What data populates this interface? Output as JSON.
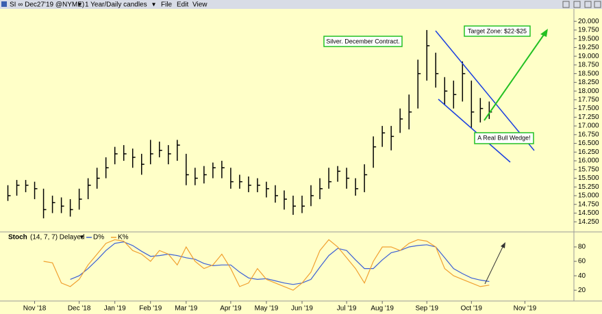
{
  "header": {
    "symbol": "SI ∞ Dec27'19 @NYME)",
    "period": "1 Year/Daily candles",
    "menus": [
      "File",
      "Edit",
      "View"
    ]
  },
  "chart_data": [
    {
      "type": "hlc",
      "annotations": [
        "Silver. December Contract.",
        "Target Zone: $22-$25",
        "A Real Bull Wedge!"
      ],
      "categories": [
        null,
        null,
        null,
        "Nov '18",
        null,
        null,
        null,
        null,
        "Dec '18",
        null,
        null,
        null,
        "Jan '19",
        null,
        null,
        null,
        "Feb '19",
        null,
        null,
        null,
        "Mar '19",
        null,
        null,
        null,
        null,
        "Apr '19",
        null,
        null,
        null,
        "May '19",
        null,
        null,
        null,
        "Jun '19",
        null,
        null,
        null,
        null,
        "Jul '19",
        null,
        null,
        null,
        "Aug '19",
        null,
        null,
        null,
        null,
        "Sep '19",
        null,
        null,
        null,
        null,
        "Oct '19",
        null,
        null,
        null,
        null,
        null,
        "Nov '19",
        null,
        null,
        null,
        null,
        null
      ],
      "high": [
        15.3,
        15.45,
        15.45,
        15.4,
        15.2,
        15.0,
        14.95,
        14.9,
        15.2,
        15.5,
        15.8,
        16.1,
        16.4,
        16.45,
        16.35,
        16.2,
        16.6,
        16.55,
        16.45,
        16.6,
        16.2,
        15.8,
        15.85,
        15.95,
        16.0,
        15.8,
        15.6,
        15.55,
        15.5,
        15.4,
        15.3,
        15.15,
        15.0,
        15.0,
        15.3,
        15.5,
        15.8,
        15.85,
        15.8,
        15.5,
        15.9,
        16.7,
        17.0,
        17.0,
        17.5,
        17.9,
        18.9,
        19.75,
        19.1,
        18.4,
        18.3,
        18.85,
        18.3,
        17.8,
        17.7,
        null,
        null,
        null,
        null,
        null,
        null,
        null,
        null,
        null
      ],
      "low": [
        14.85,
        15.0,
        15.1,
        14.9,
        14.35,
        14.5,
        14.5,
        14.4,
        14.6,
        14.9,
        15.2,
        15.5,
        15.9,
        16.0,
        15.8,
        15.6,
        15.9,
        16.1,
        15.9,
        16.0,
        15.3,
        15.3,
        15.35,
        15.5,
        15.5,
        15.2,
        15.2,
        15.1,
        15.1,
        14.95,
        14.8,
        14.6,
        14.45,
        14.5,
        14.7,
        14.9,
        15.2,
        15.4,
        15.2,
        15.0,
        15.1,
        15.8,
        16.4,
        16.3,
        16.8,
        16.9,
        17.5,
        18.3,
        18.1,
        17.6,
        17.5,
        17.7,
        16.95,
        17.1,
        17.2,
        null,
        null,
        null,
        null,
        null,
        null,
        null,
        null,
        null
      ],
      "close": [
        15.0,
        15.3,
        15.3,
        15.2,
        14.6,
        14.8,
        14.7,
        14.6,
        14.9,
        15.3,
        15.5,
        15.8,
        16.2,
        16.2,
        16.1,
        15.9,
        16.2,
        16.3,
        16.2,
        16.45,
        15.6,
        15.5,
        15.6,
        15.8,
        15.8,
        15.4,
        15.4,
        15.3,
        15.3,
        15.2,
        15.0,
        14.9,
        14.7,
        14.7,
        15.0,
        15.2,
        15.4,
        15.7,
        15.5,
        15.2,
        15.6,
        16.4,
        16.8,
        16.7,
        17.2,
        17.4,
        18.5,
        19.3,
        18.5,
        18.0,
        17.9,
        18.5,
        17.4,
        17.5,
        17.4,
        null,
        null,
        null,
        null,
        null,
        null,
        null,
        null,
        null
      ],
      "color": "#000000",
      "ylim": [
        14.0,
        20.18
      ],
      "yticks": [
        {
          "value": 14.25,
          "label": "14.250"
        },
        {
          "value": 14.5,
          "label": "14.500"
        },
        {
          "value": 14.75,
          "label": "14.750"
        },
        {
          "value": 15.0,
          "label": "15.000"
        },
        {
          "value": 15.25,
          "label": "15.250"
        },
        {
          "value": 15.5,
          "label": "15.500"
        },
        {
          "value": 15.75,
          "label": "15.750"
        },
        {
          "value": 16.0,
          "label": "16.000"
        },
        {
          "value": 16.25,
          "label": "16.250"
        },
        {
          "value": 16.5,
          "label": "16.500"
        },
        {
          "value": 16.75,
          "label": "16.750"
        },
        {
          "value": 17.0,
          "label": "17.000"
        },
        {
          "value": 17.25,
          "label": "17.250"
        },
        {
          "value": 17.5,
          "label": "17.500"
        },
        {
          "value": 17.75,
          "label": "17.750"
        },
        {
          "value": 18.0,
          "label": "18.000"
        },
        {
          "value": 18.25,
          "label": "18.250"
        },
        {
          "value": 18.5,
          "label": "18.500"
        },
        {
          "value": 18.75,
          "label": "18.750"
        },
        {
          "value": 19.0,
          "label": "19.000"
        },
        {
          "value": 19.25,
          "label": "19.250"
        },
        {
          "value": 19.5,
          "label": "19.500"
        },
        {
          "value": 19.75,
          "label": "19.750"
        },
        {
          "value": 20.0,
          "label": "20.000"
        }
      ]
    },
    {
      "type": "line",
      "title": "Stoch",
      "subtitle": "(14, 7, 7) Delayed",
      "series": [
        {
          "name": "D%",
          "color": "#3b5fd6",
          "values": [
            null,
            null,
            null,
            null,
            null,
            null,
            null,
            35,
            40,
            50,
            62,
            75,
            85,
            87,
            82,
            74,
            67,
            68,
            70,
            68,
            65,
            63,
            57,
            54,
            55,
            55,
            45,
            37,
            35,
            36,
            33,
            30,
            28,
            30,
            35,
            52,
            68,
            78,
            75,
            62,
            50,
            50,
            62,
            72,
            75,
            80,
            82,
            83,
            80,
            65,
            50,
            43,
            37,
            34,
            32,
            null,
            null,
            null,
            null,
            null,
            null,
            null,
            null,
            null
          ]
        },
        {
          "name": "K%",
          "color": "#f0a030",
          "values": [
            null,
            null,
            null,
            null,
            60,
            58,
            30,
            25,
            35,
            55,
            70,
            85,
            90,
            88,
            75,
            70,
            60,
            75,
            70,
            55,
            80,
            60,
            50,
            55,
            70,
            50,
            25,
            30,
            50,
            35,
            30,
            25,
            20,
            30,
            45,
            75,
            90,
            80,
            65,
            50,
            30,
            60,
            80,
            80,
            75,
            85,
            90,
            88,
            80,
            50,
            40,
            35,
            30,
            25,
            27,
            null,
            null,
            null,
            null,
            null,
            null,
            null,
            null,
            null
          ]
        }
      ],
      "ylim": [
        5,
        98
      ],
      "yticks": [
        20,
        40,
        60,
        80
      ]
    }
  ]
}
